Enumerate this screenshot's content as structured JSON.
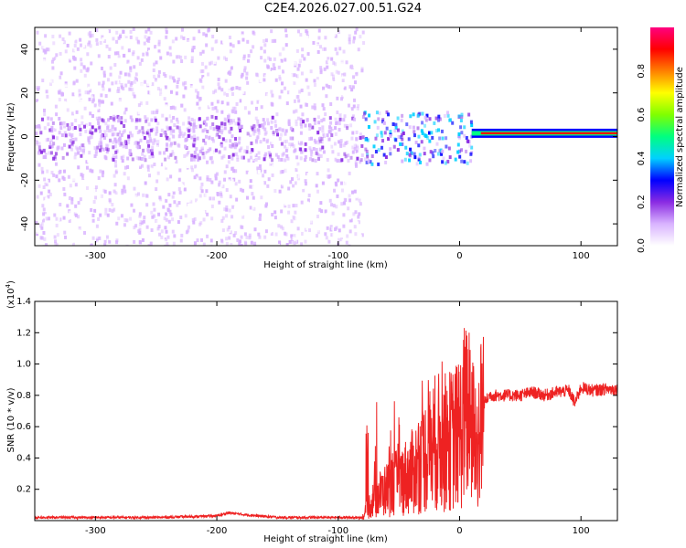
{
  "title": "C2E4.2026.027.00.51.G24",
  "chart_data": [
    {
      "type": "heatmap",
      "xlabel": "Height of straight line (km)",
      "ylabel": "Frequency (Hz)",
      "xlim": [
        -350,
        130
      ],
      "ylim": [
        -50,
        50
      ],
      "xticks": [
        -300,
        -200,
        -100,
        0,
        100
      ],
      "yticks": [
        -40,
        -20,
        0,
        20,
        40
      ],
      "colorbar": {
        "label": "Normalized spectral amplitude",
        "range": [
          0.0,
          1.0
        ],
        "ticks": [
          "0.0",
          "0.2",
          "0.4",
          "0.6",
          "0.8"
        ],
        "colors": [
          "#ffffff",
          "#d9b3ff",
          "#8a2be2",
          "#0000ff",
          "#00d0ff",
          "#00ff80",
          "#80ff00",
          "#ffff00",
          "#ff8000",
          "#ff0000",
          "#ff0080"
        ]
      },
      "regions": [
        {
          "x": [
            -350,
            -80
          ],
          "freq_band": [
            -50,
            50
          ],
          "amplitude": 0.05,
          "note": "sparse noise"
        },
        {
          "x": [
            -350,
            -80
          ],
          "freq_band": [
            -10,
            10
          ],
          "amplitude": 0.12
        },
        {
          "x": [
            -80,
            10
          ],
          "freq_band": [
            -12,
            12
          ],
          "amplitude": 0.25
        },
        {
          "x": [
            10,
            130
          ],
          "freq_band": [
            0,
            3
          ],
          "amplitude": 0.85
        }
      ]
    },
    {
      "type": "line",
      "xlabel": "Height of straight line (km)",
      "ylabel": "SNR (10 * v/v)",
      "scale_note": "(x10",
      "scale_exp": "4",
      "scale_close": ")",
      "xlim": [
        -350,
        130
      ],
      "ylim": [
        0,
        1.4
      ],
      "xticks": [
        -300,
        -200,
        -100,
        0,
        100
      ],
      "yticks": [
        "0.2",
        "0.4",
        "0.6",
        "0.8",
        "1.0",
        "1.2",
        "1.4"
      ],
      "series": [
        {
          "color": "#ee2222",
          "x": [
            -350,
            -300,
            -250,
            -200,
            -190,
            -180,
            -150,
            -100,
            -80,
            -70,
            -60,
            -50,
            -40,
            -30,
            -20,
            -10,
            0,
            5,
            10,
            15,
            20,
            25,
            30,
            40,
            50,
            60,
            70,
            80,
            90,
            95,
            100,
            110,
            120,
            130
          ],
          "y": [
            0.02,
            0.02,
            0.02,
            0.03,
            0.05,
            0.04,
            0.02,
            0.02,
            0.02,
            0.15,
            0.2,
            0.25,
            0.3,
            0.4,
            0.5,
            0.5,
            0.55,
            0.7,
            0.6,
            0.5,
            0.75,
            0.8,
            0.8,
            0.8,
            0.8,
            0.82,
            0.8,
            0.82,
            0.83,
            0.75,
            0.85,
            0.83,
            0.84,
            0.84
          ]
        }
      ]
    }
  ]
}
